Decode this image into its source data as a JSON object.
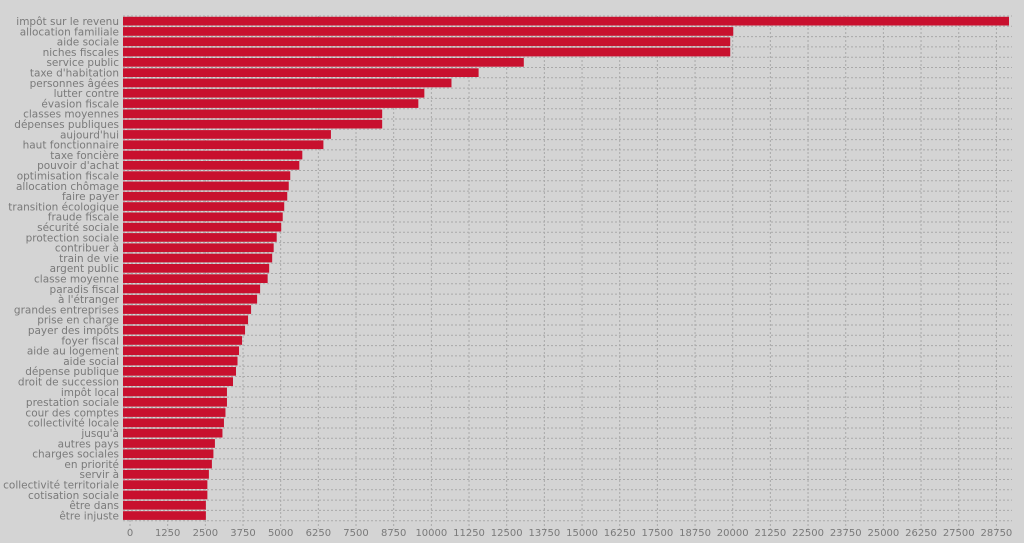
{
  "chart_data": {
    "type": "bar",
    "orientation": "horizontal",
    "bar_color": "#c8102e",
    "background_color": "#d4d4d4",
    "grid": true,
    "xlim": [
      0,
      29500
    ],
    "x_ticks": [
      0,
      1250,
      2500,
      3750,
      5000,
      6250,
      7500,
      8750,
      10000,
      11250,
      12500,
      13750,
      15000,
      16250,
      17500,
      18750,
      20000,
      21250,
      22500,
      23750,
      25000,
      26250,
      27500,
      28750
    ],
    "categories": [
      "impôt sur le revenu",
      "allocation familiale",
      "aide sociale",
      "niches fiscales",
      "service public",
      "taxe d'habitation",
      "personnes âgées",
      "lutter contre",
      "évasion fiscale",
      "classes moyennes",
      "dépenses publiques",
      "aujourd'hui",
      "haut fonctionnaire",
      "taxe foncière",
      "pouvoir d'achat",
      "optimisation fiscale",
      "allocation chômage",
      "faire payer",
      "transition écologique",
      "fraude fiscale",
      "sécurité sociale",
      "protection sociale",
      "contribuer à",
      "train de vie",
      "argent public",
      "classe moyenne",
      "paradis fiscal",
      "à l'étranger",
      "grandes entreprises",
      "prise en charge",
      "payer des impôts",
      "foyer fiscal",
      "aide au logement",
      "aide social",
      "dépense publique",
      "droit de succession",
      "impôt local",
      "prestation sociale",
      "cour des comptes",
      "collectivité locale",
      "jusqu'à",
      "autres pays",
      "charges sociales",
      "en priorité",
      "servir à",
      "collectivité territoriale",
      "cotisation sociale",
      "être dans",
      "être injuste"
    ],
    "values": [
      29400,
      20250,
      20150,
      20150,
      13300,
      11800,
      10900,
      10000,
      9800,
      8600,
      8600,
      6900,
      6650,
      5950,
      5850,
      5550,
      5500,
      5450,
      5350,
      5300,
      5250,
      5100,
      5000,
      4950,
      4850,
      4800,
      4550,
      4450,
      4250,
      4150,
      4050,
      3950,
      3850,
      3800,
      3750,
      3650,
      3450,
      3450,
      3400,
      3350,
      3300,
      3050,
      3000,
      2950,
      2850,
      2800,
      2800,
      2750,
      2750
    ]
  }
}
